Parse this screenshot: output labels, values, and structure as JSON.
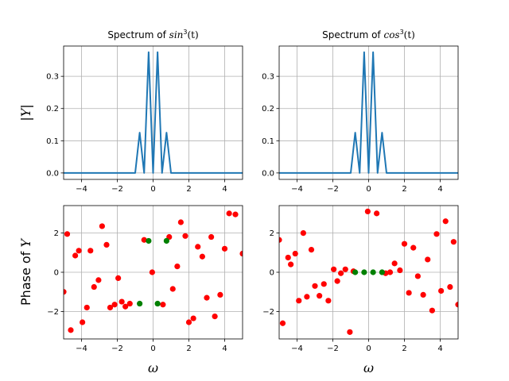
{
  "chart_data": [
    {
      "id": "mag_sin",
      "type": "line",
      "title_prefix": "Spectrum of ",
      "title_math": "sin",
      "title_sup": "3",
      "title_suffix": "(t)",
      "ylabel": "|Y|",
      "xlabel": "",
      "xlim": [
        -5,
        5
      ],
      "ylim": [
        -0.02,
        0.394
      ],
      "xticks": [
        -4,
        -2,
        0,
        2,
        4
      ],
      "xticklabels": [
        "−4",
        "−2",
        "0",
        "2",
        "4"
      ],
      "yticks": [
        0.0,
        0.1,
        0.2,
        0.3
      ],
      "yticklabels": [
        "0.0",
        "0.1",
        "0.2",
        "0.3"
      ],
      "grid": true,
      "color": "#1f77b4",
      "x": [
        -5.0,
        -1.0,
        -0.75,
        -0.5,
        -0.25,
        0.0,
        0.25,
        0.5,
        0.75,
        1.0,
        5.0
      ],
      "y": [
        0.0,
        0.0,
        0.125,
        0.0,
        0.375,
        0.0,
        0.375,
        0.0,
        0.125,
        0.0,
        0.0
      ]
    },
    {
      "id": "mag_cos",
      "type": "line",
      "title_prefix": "Spectrum of ",
      "title_math": "cos",
      "title_sup": "3",
      "title_suffix": "(t)",
      "ylabel": "",
      "xlabel": "",
      "xlim": [
        -5,
        5
      ],
      "ylim": [
        -0.02,
        0.394
      ],
      "xticks": [
        -4,
        -2,
        0,
        2,
        4
      ],
      "xticklabels": [
        "−4",
        "−2",
        "0",
        "2",
        "4"
      ],
      "yticks": [
        0.0,
        0.1,
        0.2,
        0.3
      ],
      "yticklabels": [
        "0.0",
        "0.1",
        "0.2",
        "0.3"
      ],
      "grid": true,
      "color": "#1f77b4",
      "x": [
        -5.0,
        -1.0,
        -0.75,
        -0.5,
        -0.25,
        0.0,
        0.25,
        0.5,
        0.75,
        1.0,
        5.0
      ],
      "y": [
        0.0,
        0.0,
        0.125,
        0.0,
        0.375,
        0.0,
        0.375,
        0.0,
        0.125,
        0.0,
        0.0
      ]
    },
    {
      "id": "phase_sin",
      "type": "scatter",
      "title_prefix": "",
      "ylabel": "Phase of Y",
      "xlabel": "ω",
      "xlim": [
        -5,
        5
      ],
      "ylim": [
        -3.4,
        3.4
      ],
      "xticks": [
        -4,
        -2,
        0,
        2,
        4
      ],
      "xticklabels": [
        "−4",
        "−2",
        "0",
        "2",
        "4"
      ],
      "yticks": [
        -2,
        0,
        2
      ],
      "yticklabels": [
        "−2",
        "0",
        "2"
      ],
      "grid": true,
      "series": [
        {
          "color": "#ff0000",
          "points": [
            [
              -5.0,
              -1.0
            ],
            [
              -4.8,
              1.95
            ],
            [
              -4.6,
              -2.95
            ],
            [
              -4.35,
              0.85
            ],
            [
              -4.15,
              1.1
            ],
            [
              -3.95,
              -2.55
            ],
            [
              -3.7,
              -1.8
            ],
            [
              -3.5,
              1.1
            ],
            [
              -3.3,
              -0.75
            ],
            [
              -3.05,
              -0.4
            ],
            [
              -2.85,
              2.35
            ],
            [
              -2.6,
              1.4
            ],
            [
              -2.4,
              -1.8
            ],
            [
              -2.15,
              -1.65
            ],
            [
              -1.95,
              -0.3
            ],
            [
              -1.75,
              -1.5
            ],
            [
              -1.55,
              -1.75
            ],
            [
              -1.3,
              -1.6
            ],
            [
              -0.5,
              1.65
            ],
            [
              -0.05,
              0.0
            ],
            [
              0.55,
              -1.65
            ],
            [
              0.9,
              1.8
            ],
            [
              1.1,
              -0.85
            ],
            [
              1.35,
              0.3
            ],
            [
              1.55,
              2.55
            ],
            [
              1.8,
              1.85
            ],
            [
              2.0,
              -2.55
            ],
            [
              2.25,
              -2.35
            ],
            [
              2.5,
              1.3
            ],
            [
              2.75,
              0.8
            ],
            [
              3.0,
              -1.3
            ],
            [
              3.25,
              1.8
            ],
            [
              3.45,
              -2.25
            ],
            [
              3.75,
              -1.15
            ],
            [
              4.0,
              1.2
            ],
            [
              4.25,
              3.0
            ],
            [
              4.6,
              2.95
            ],
            [
              5.0,
              0.95
            ]
          ]
        },
        {
          "color": "#008000",
          "points": [
            [
              -0.75,
              -1.6
            ],
            [
              -0.25,
              1.6
            ],
            [
              0.25,
              -1.6
            ],
            [
              0.75,
              1.6
            ]
          ]
        }
      ]
    },
    {
      "id": "phase_cos",
      "type": "scatter",
      "title_prefix": "",
      "ylabel": "",
      "xlabel": "ω",
      "xlim": [
        -5,
        5
      ],
      "ylim": [
        -3.4,
        3.4
      ],
      "xticks": [
        -4,
        -2,
        0,
        2,
        4
      ],
      "xticklabels": [
        "−4",
        "−2",
        "0",
        "2",
        "4"
      ],
      "yticks": [
        -2,
        0,
        2
      ],
      "yticklabels": [
        "−2",
        "0",
        "2"
      ],
      "grid": true,
      "series": [
        {
          "color": "#ff0000",
          "points": [
            [
              -5.0,
              1.65
            ],
            [
              -4.8,
              -2.6
            ],
            [
              -4.5,
              0.75
            ],
            [
              -4.35,
              0.4
            ],
            [
              -4.1,
              0.95
            ],
            [
              -3.9,
              -1.45
            ],
            [
              -3.65,
              2.0
            ],
            [
              -3.45,
              -1.25
            ],
            [
              -3.2,
              1.15
            ],
            [
              -3.0,
              -0.7
            ],
            [
              -2.75,
              -1.2
            ],
            [
              -2.5,
              -0.6
            ],
            [
              -2.25,
              -1.45
            ],
            [
              -1.95,
              0.15
            ],
            [
              -1.75,
              -0.45
            ],
            [
              -1.55,
              -0.05
            ],
            [
              -1.3,
              0.15
            ],
            [
              -1.05,
              -3.05
            ],
            [
              -0.85,
              0.05
            ],
            [
              -0.05,
              3.1
            ],
            [
              0.45,
              3.0
            ],
            [
              0.95,
              -0.05
            ],
            [
              1.2,
              0.0
            ],
            [
              1.45,
              0.45
            ],
            [
              1.75,
              0.1
            ],
            [
              2.0,
              1.45
            ],
            [
              2.25,
              -1.05
            ],
            [
              2.5,
              1.25
            ],
            [
              2.75,
              -0.2
            ],
            [
              3.05,
              -1.15
            ],
            [
              3.3,
              0.65
            ],
            [
              3.55,
              -1.95
            ],
            [
              3.8,
              1.95
            ],
            [
              4.05,
              -0.95
            ],
            [
              4.3,
              2.6
            ],
            [
              4.55,
              -0.75
            ],
            [
              4.75,
              1.55
            ],
            [
              5.0,
              -1.65
            ]
          ]
        },
        {
          "color": "#008000",
          "points": [
            [
              -0.75,
              0.0
            ],
            [
              -0.25,
              0.0
            ],
            [
              0.25,
              0.0
            ],
            [
              0.75,
              0.0
            ]
          ]
        }
      ]
    }
  ]
}
